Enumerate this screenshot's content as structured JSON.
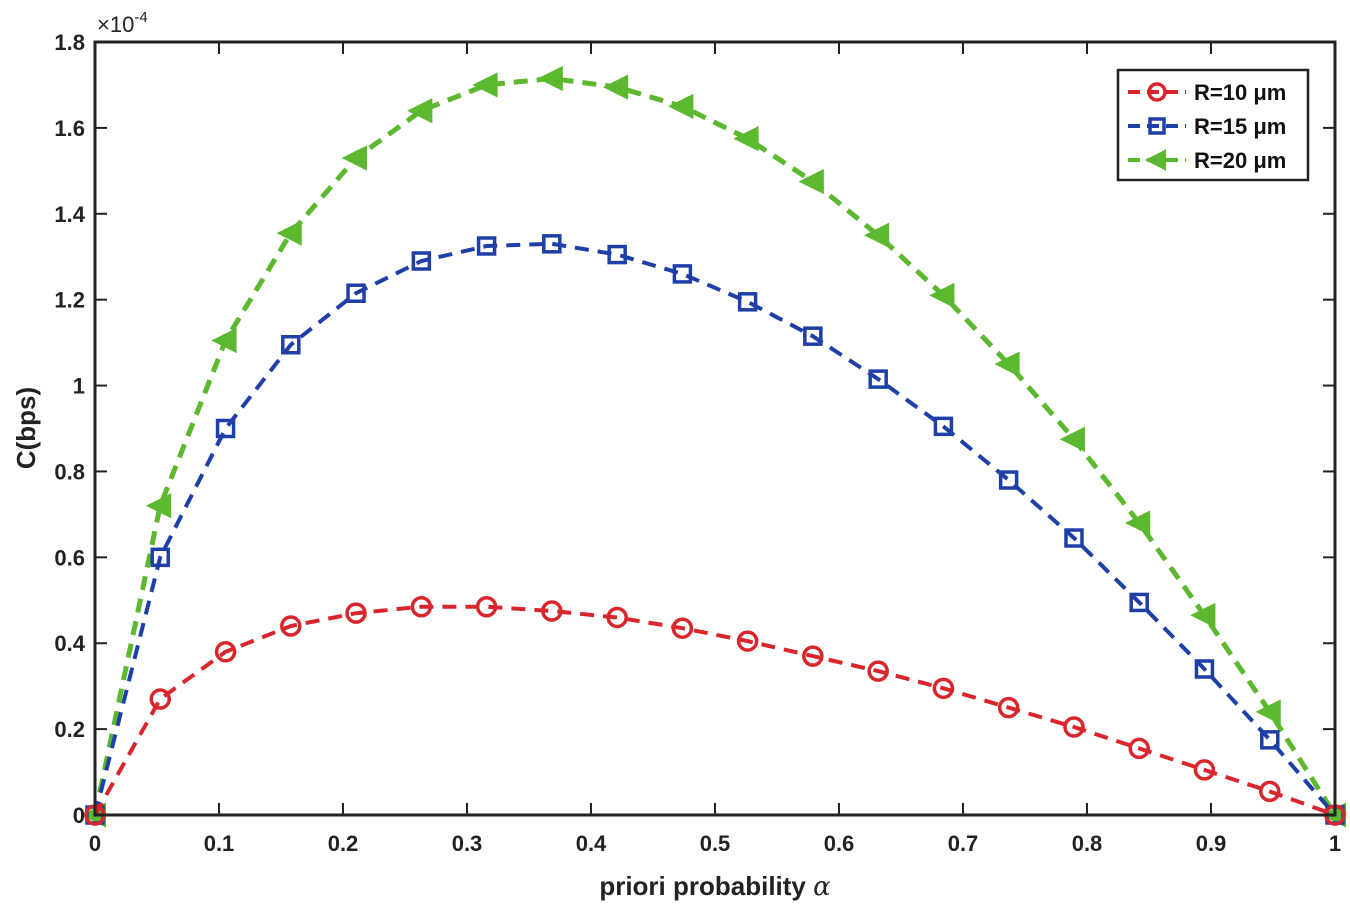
{
  "chart_data": {
    "type": "line",
    "title": "",
    "xlabel": "priori probability",
    "xlabel_symbol": "α",
    "ylabel": "C(bps)",
    "y_scale_base": "×10",
    "y_scale_exponent": "-4",
    "xlim": [
      0,
      1
    ],
    "ylim": [
      0,
      1.8
    ],
    "x_ticks": [
      "0",
      "0.1",
      "0.2",
      "0.3",
      "0.4",
      "0.5",
      "0.6",
      "0.7",
      "0.8",
      "0.9",
      "1"
    ],
    "y_ticks": [
      "0",
      "0.2",
      "0.4",
      "0.6",
      "0.8",
      "1",
      "1.2",
      "1.4",
      "1.6",
      "1.8"
    ],
    "legend_position": "top-right",
    "x": [
      0,
      0.0526,
      0.1053,
      0.1579,
      0.2105,
      0.2632,
      0.3158,
      0.3684,
      0.4211,
      0.4737,
      0.5263,
      0.5789,
      0.6316,
      0.6842,
      0.7368,
      0.7895,
      0.8421,
      0.8947,
      0.9474,
      1.0
    ],
    "series": [
      {
        "name": "R=10 μm",
        "color": "#d9262c",
        "marker": "circle",
        "values": [
          0,
          0.27,
          0.38,
          0.44,
          0.47,
          0.485,
          0.485,
          0.475,
          0.46,
          0.435,
          0.405,
          0.37,
          0.335,
          0.295,
          0.25,
          0.205,
          0.155,
          0.105,
          0.055,
          0
        ]
      },
      {
        "name": "R=15 μm",
        "color": "#1f3fa8",
        "marker": "square",
        "values": [
          0,
          0.6,
          0.9,
          1.095,
          1.215,
          1.29,
          1.325,
          1.33,
          1.305,
          1.26,
          1.195,
          1.115,
          1.015,
          0.905,
          0.78,
          0.645,
          0.495,
          0.34,
          0.175,
          0
        ]
      },
      {
        "name": "R=20 μm",
        "color": "#5cb82e",
        "marker": "triangle-left",
        "values": [
          0,
          0.72,
          1.105,
          1.355,
          1.53,
          1.64,
          1.7,
          1.715,
          1.695,
          1.65,
          1.575,
          1.475,
          1.35,
          1.21,
          1.05,
          0.875,
          0.68,
          0.465,
          0.24,
          0
        ]
      }
    ]
  }
}
